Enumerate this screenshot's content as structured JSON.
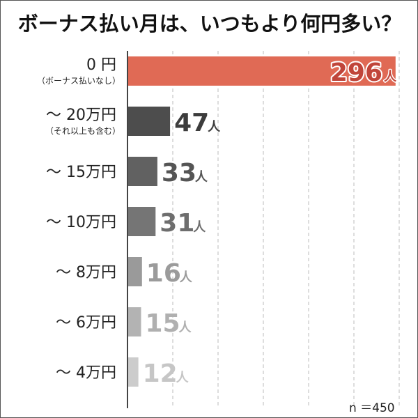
{
  "chart_data": {
    "type": "bar",
    "orientation": "horizontal",
    "title": "ボーナス払い月は、いつもより何円多い？",
    "categories": [
      {
        "label": "0 円",
        "sublabel": "（ボーナス払いなし）"
      },
      {
        "label": "～ 20万円",
        "sublabel": "（それ以上も含む）"
      },
      {
        "label": "～ 15万円",
        "sublabel": ""
      },
      {
        "label": "～ 10万円",
        "sublabel": ""
      },
      {
        "label": "～ 8万円",
        "sublabel": ""
      },
      {
        "label": "～ 6万円",
        "sublabel": ""
      },
      {
        "label": "～ 4万円",
        "sublabel": ""
      }
    ],
    "values": [
      296,
      47,
      33,
      31,
      16,
      15,
      12
    ],
    "value_unit": "人",
    "xlim": [
      0,
      300
    ],
    "grid": true,
    "bar_colors": [
      "#e06a55",
      "#4d4d4d",
      "#616161",
      "#757575",
      "#9a9a9a",
      "#b3b3b3",
      "#cccccc"
    ],
    "label_text_colors": [
      "#c0453a",
      "#3c3c3c",
      "#555555",
      "#6e6e6e",
      "#9b9b9b",
      "#b0b0b0",
      "#c6c6c6"
    ],
    "note": "n ＝450"
  }
}
